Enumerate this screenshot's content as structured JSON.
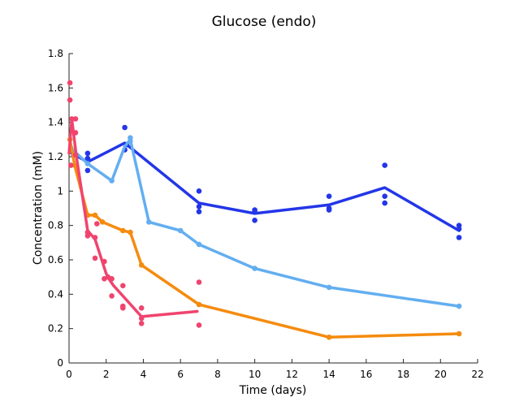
{
  "chart_data": {
    "type": "line",
    "title": "Glucose (endo)",
    "xlabel": "Time (days)",
    "ylabel": "Concentration (mM)",
    "xlim": [
      0,
      22
    ],
    "ylim": [
      0,
      1.8
    ],
    "xticks": [
      0,
      2,
      4,
      6,
      8,
      10,
      12,
      14,
      16,
      18,
      20,
      22
    ],
    "yticks": [
      0,
      0.2,
      0.4,
      0.6,
      0.8,
      1,
      1.2,
      1.4,
      1.6,
      1.8
    ],
    "xtick_labels": [
      "0",
      "2",
      "4",
      "6",
      "8",
      "10",
      "12",
      "14",
      "16",
      "18",
      "20",
      "22"
    ],
    "ytick_labels": [
      "0",
      "0.2",
      "0.4",
      "0.6",
      "0.8",
      "1",
      "1.2",
      "1.4",
      "1.6",
      "1.8"
    ],
    "grid": false,
    "legend": false,
    "series": [
      {
        "color": "#2336e8",
        "line": [
          [
            0.15,
            1.22
          ],
          [
            1.0,
            1.17
          ],
          [
            3.0,
            1.28
          ],
          [
            7.0,
            0.93
          ],
          [
            10.0,
            0.87
          ],
          [
            14.0,
            0.92
          ],
          [
            17.0,
            1.02
          ],
          [
            21.0,
            0.77
          ]
        ],
        "points": [
          [
            0.1,
            1.24
          ],
          [
            0.25,
            1.21
          ],
          [
            1.0,
            1.22
          ],
          [
            1.0,
            1.12
          ],
          [
            1.0,
            1.19
          ],
          [
            3.0,
            1.37
          ],
          [
            3.0,
            1.24
          ],
          [
            3.1,
            1.27
          ],
          [
            7.0,
            1.0
          ],
          [
            7.0,
            0.91
          ],
          [
            7.0,
            0.88
          ],
          [
            10.0,
            0.89
          ],
          [
            10.0,
            0.88
          ],
          [
            10.0,
            0.83
          ],
          [
            14.0,
            0.97
          ],
          [
            14.0,
            0.9
          ],
          [
            14.0,
            0.89
          ],
          [
            17.0,
            1.15
          ],
          [
            17.0,
            0.97
          ],
          [
            17.0,
            0.93
          ],
          [
            21.0,
            0.8
          ],
          [
            21.0,
            0.78
          ],
          [
            21.0,
            0.73
          ]
        ]
      },
      {
        "color": "#63aef0",
        "line": [
          [
            0.1,
            1.25
          ],
          [
            1.0,
            1.16
          ],
          [
            2.3,
            1.06
          ],
          [
            3.0,
            1.26
          ],
          [
            3.3,
            1.3
          ],
          [
            4.3,
            0.82
          ],
          [
            6.0,
            0.77
          ],
          [
            7.0,
            0.69
          ],
          [
            10.0,
            0.55
          ],
          [
            14.0,
            0.44
          ],
          [
            21.0,
            0.33
          ]
        ],
        "points": [
          [
            0.1,
            1.25
          ],
          [
            1.0,
            1.16
          ],
          [
            2.3,
            1.06
          ],
          [
            3.3,
            1.31
          ],
          [
            3.3,
            1.29
          ],
          [
            4.3,
            0.82
          ],
          [
            6.0,
            0.77
          ],
          [
            7.0,
            0.69
          ],
          [
            10.0,
            0.55
          ],
          [
            14.0,
            0.44
          ],
          [
            21.0,
            0.33
          ]
        ]
      },
      {
        "color": "#f58b0e",
        "line": [
          [
            0.05,
            1.3
          ],
          [
            0.3,
            1.15
          ],
          [
            1.0,
            0.86
          ],
          [
            1.4,
            0.86
          ],
          [
            1.8,
            0.82
          ],
          [
            2.9,
            0.77
          ],
          [
            3.3,
            0.76
          ],
          [
            3.9,
            0.57
          ],
          [
            7.0,
            0.34
          ],
          [
            14.0,
            0.15
          ],
          [
            21.0,
            0.17
          ]
        ],
        "points": [
          [
            0.05,
            1.3
          ],
          [
            0.3,
            1.15
          ],
          [
            1.0,
            0.86
          ],
          [
            1.4,
            0.86
          ],
          [
            1.8,
            0.82
          ],
          [
            2.9,
            0.77
          ],
          [
            3.3,
            0.76
          ],
          [
            3.9,
            0.57
          ],
          [
            7.0,
            0.34
          ],
          [
            14.0,
            0.15
          ],
          [
            21.0,
            0.17
          ]
        ]
      },
      {
        "color": "#f0446e",
        "line": [
          [
            0.0,
            1.22
          ],
          [
            0.15,
            1.42
          ],
          [
            0.4,
            1.2
          ],
          [
            1.0,
            0.77
          ],
          [
            1.4,
            0.72
          ],
          [
            2.0,
            0.52
          ],
          [
            2.2,
            0.48
          ],
          [
            2.4,
            0.45
          ],
          [
            3.9,
            0.27
          ],
          [
            6.9,
            0.3
          ]
        ],
        "points": [
          [
            0.05,
            1.63
          ],
          [
            0.05,
            1.53
          ],
          [
            0.15,
            1.42
          ],
          [
            0.35,
            1.42
          ],
          [
            0.35,
            1.34
          ],
          [
            0.1,
            1.15
          ],
          [
            0.35,
            1.21
          ],
          [
            1.0,
            0.76
          ],
          [
            1.0,
            0.74
          ],
          [
            1.4,
            0.73
          ],
          [
            1.4,
            0.61
          ],
          [
            1.5,
            0.81
          ],
          [
            1.9,
            0.59
          ],
          [
            1.9,
            0.49
          ],
          [
            2.1,
            0.5
          ],
          [
            2.3,
            0.49
          ],
          [
            2.3,
            0.39
          ],
          [
            2.9,
            0.45
          ],
          [
            2.9,
            0.33
          ],
          [
            2.9,
            0.32
          ],
          [
            3.9,
            0.32
          ],
          [
            3.9,
            0.26
          ],
          [
            3.9,
            0.23
          ],
          [
            7.0,
            0.47
          ],
          [
            7.0,
            0.22
          ]
        ]
      }
    ]
  }
}
